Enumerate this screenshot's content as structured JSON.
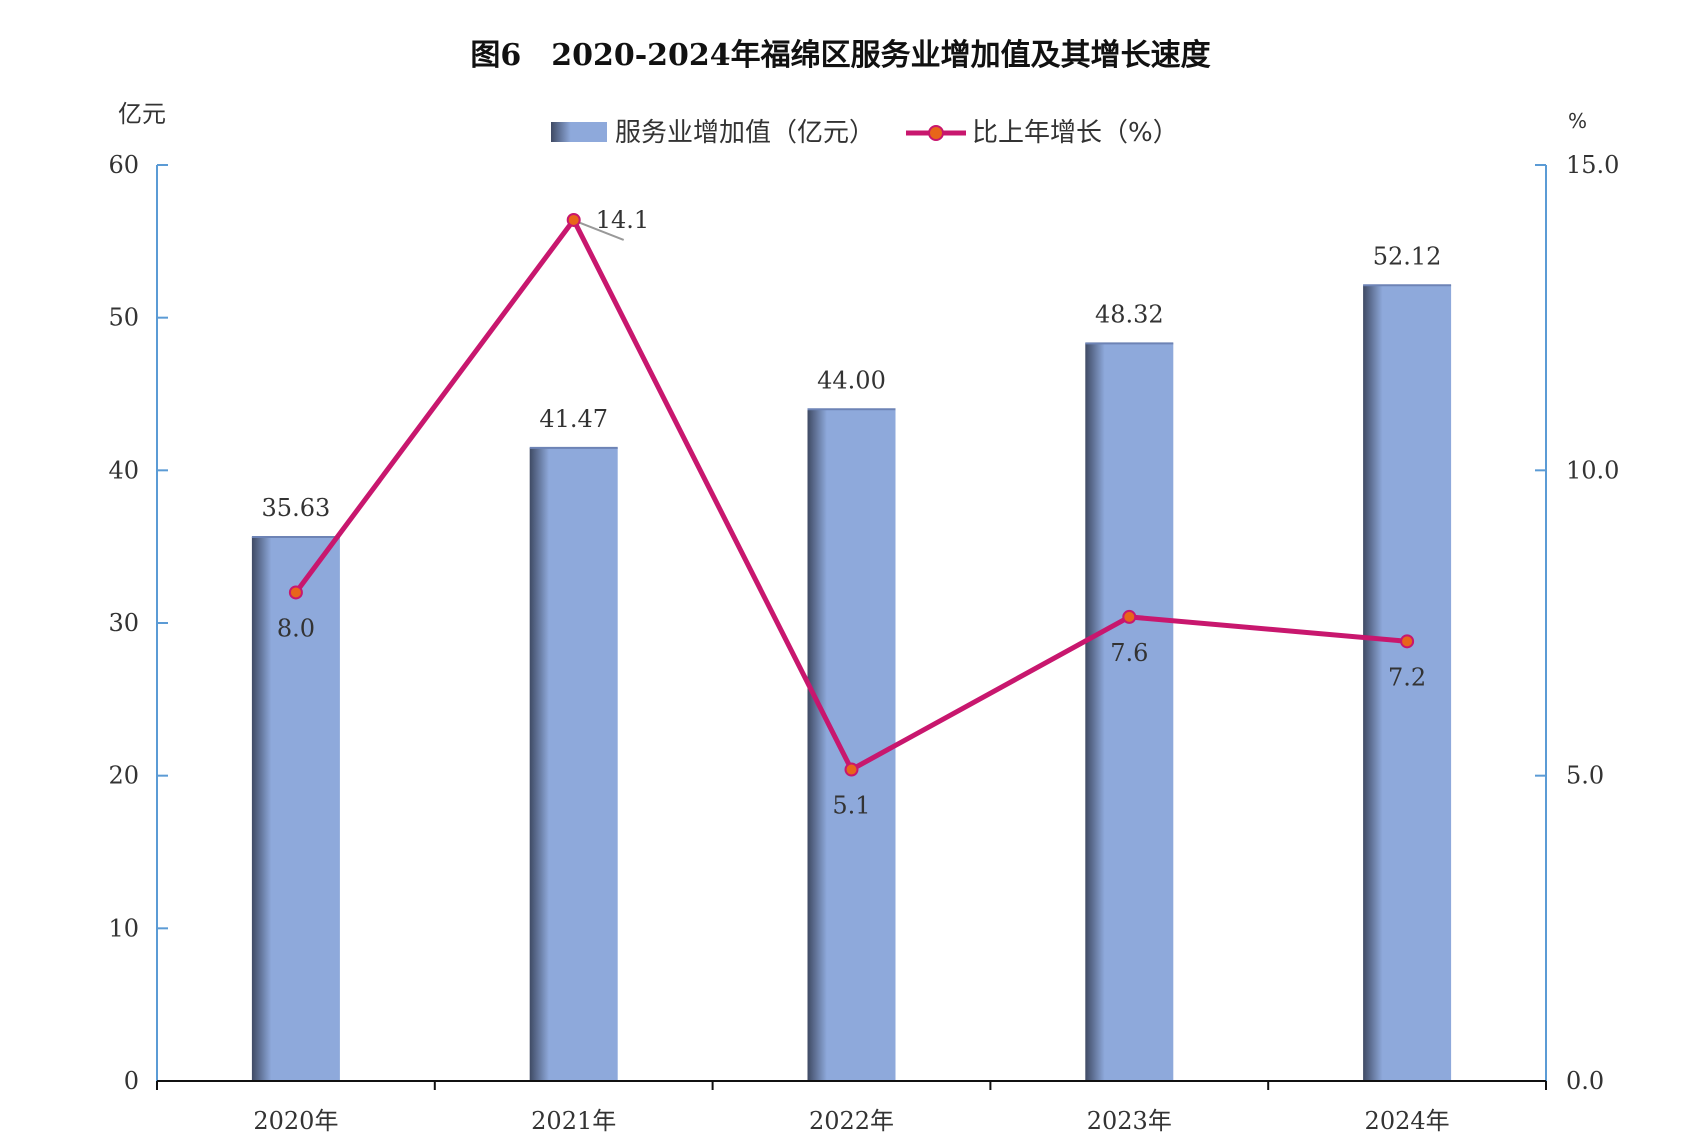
{
  "chart_data": {
    "type": "bar+line",
    "title": "图6　2020-2024年福绵区服务业增加值及其增长速度",
    "categories": [
      "2020年",
      "2021年",
      "2022年",
      "2023年",
      "2024年"
    ],
    "series": [
      {
        "name": "服务业增加值（亿元）",
        "type": "bar",
        "axis": "left",
        "values": [
          35.63,
          41.47,
          44.0,
          48.32,
          52.12
        ],
        "labels": [
          "35.63",
          "41.47",
          "44.00",
          "48.32",
          "52.12"
        ],
        "color": "#8EA9DB"
      },
      {
        "name": "比上年增长（%）",
        "type": "line",
        "axis": "right",
        "values": [
          8.0,
          14.1,
          5.1,
          7.6,
          7.2
        ],
        "labels": [
          "8.0",
          "14.1",
          "5.1",
          "7.6",
          "7.2"
        ],
        "color": "#C8176E",
        "marker_color": "#E8651A"
      }
    ],
    "y_left": {
      "unit": "亿元",
      "range": [
        0,
        60
      ],
      "ticks": [
        0,
        10,
        20,
        30,
        40,
        50,
        60
      ],
      "tick_labels": [
        "0",
        "10",
        "20",
        "30",
        "40",
        "50",
        "60"
      ]
    },
    "y_right": {
      "unit": "%",
      "range": [
        0,
        15
      ],
      "ticks": [
        0,
        5,
        10,
        15
      ],
      "tick_labels": [
        "0.0",
        "5.0",
        "10.0",
        "15.0"
      ]
    },
    "axis_color": "#5B9BD5",
    "grid": false,
    "legend_position": "top-center"
  }
}
